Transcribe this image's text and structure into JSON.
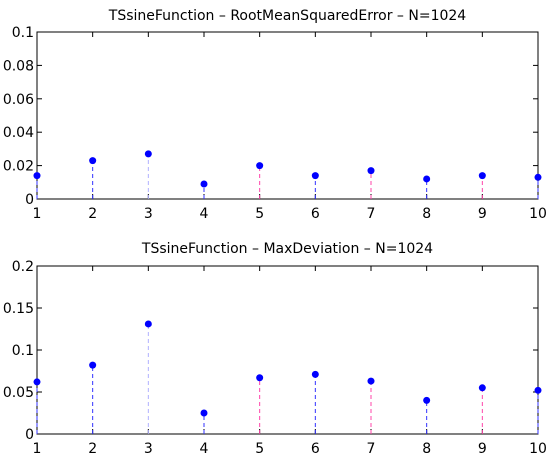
{
  "chart_data": [
    {
      "type": "stem",
      "title": "TSsineFunction – RootMeanSquaredError – N=1024",
      "xlabel": "",
      "ylabel": "",
      "xlim": [
        1,
        10
      ],
      "ylim": [
        0,
        0.1
      ],
      "x_ticks": [
        "1",
        "2",
        "3",
        "4",
        "5",
        "6",
        "7",
        "8",
        "9",
        "10"
      ],
      "y_ticks": [
        "0",
        "0.02",
        "0.04",
        "0.06",
        "0.08",
        "0.1"
      ],
      "x": [
        1,
        2,
        3,
        4,
        5,
        6,
        7,
        8,
        9,
        10
      ],
      "values": [
        0.014,
        0.023,
        0.027,
        0.009,
        0.02,
        0.014,
        0.017,
        0.012,
        0.014,
        0.013
      ],
      "marker_color": "#0000ff",
      "stem_colors": [
        "#3333ff",
        "#3333ff",
        "#b0b0ff",
        "#3333ff",
        "#ff44aa",
        "#3333ff",
        "#ff44aa",
        "#3333ff",
        "#ff44aa",
        "#3333ff"
      ]
    },
    {
      "type": "stem",
      "title": "TSsineFunction – MaxDeviation – N=1024",
      "xlabel": "",
      "ylabel": "",
      "xlim": [
        1,
        10
      ],
      "ylim": [
        0,
        0.2
      ],
      "x_ticks": [
        "1",
        "2",
        "3",
        "4",
        "5",
        "6",
        "7",
        "8",
        "9",
        "10"
      ],
      "y_ticks": [
        "0",
        "0.05",
        "0.1",
        "0.15",
        "0.2"
      ],
      "x": [
        1,
        2,
        3,
        4,
        5,
        6,
        7,
        8,
        9,
        10
      ],
      "values": [
        0.062,
        0.082,
        0.131,
        0.025,
        0.067,
        0.071,
        0.063,
        0.04,
        0.055,
        0.052
      ],
      "marker_color": "#0000ff",
      "stem_colors": [
        "#3333ff",
        "#3333ff",
        "#b0b0ff",
        "#3333ff",
        "#ff44aa",
        "#3333ff",
        "#ff44aa",
        "#3333ff",
        "#ff44aa",
        "#3333ff"
      ]
    }
  ]
}
